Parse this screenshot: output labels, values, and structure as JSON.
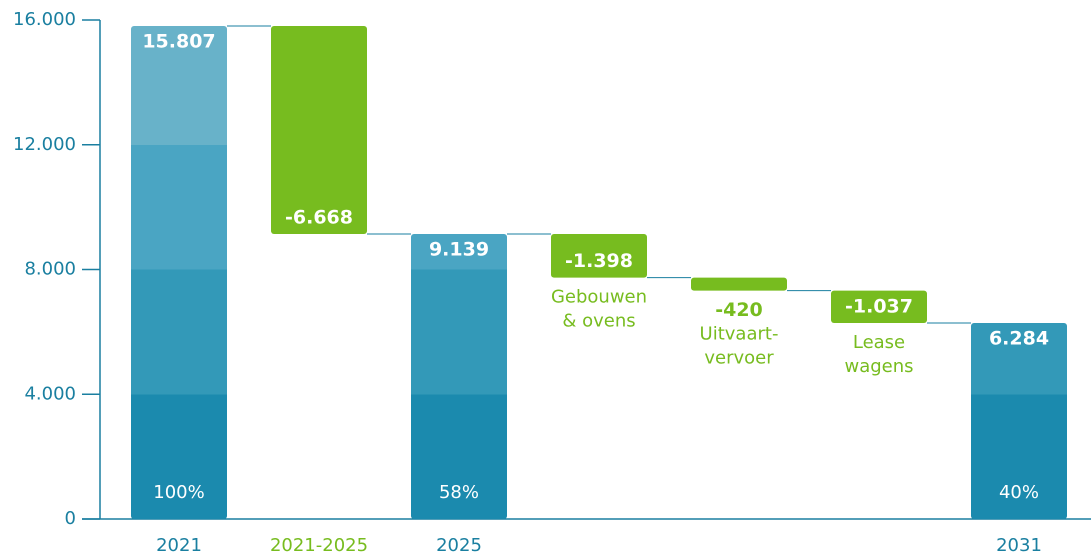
{
  "chart_data": {
    "type": "waterfall",
    "categories": [
      "2021",
      "2021-2025",
      "2025",
      null,
      null,
      null,
      "2031"
    ],
    "kinds": [
      "total",
      "delta",
      "total",
      "delta",
      "delta",
      "delta",
      "total"
    ],
    "values": [
      15807,
      -6668,
      9139,
      -1398,
      -420,
      -1037,
      6284
    ],
    "value_labels": [
      "15.807",
      "-6.668",
      "9.139",
      "-1.398",
      "-420",
      "-1.037",
      "6.284"
    ],
    "share_labels": [
      "100%",
      null,
      "58%",
      null,
      null,
      null,
      "40%"
    ],
    "descriptions": [
      null,
      null,
      null,
      [
        "Gebouwen",
        "& ovens"
      ],
      [
        "Uitvaart-",
        "vervoer"
      ],
      [
        "Lease",
        "wagens"
      ],
      null
    ],
    "total_band_colors": [
      "#1b8aae",
      "#3399b8",
      "#4aa5c3",
      "#68b2c9"
    ],
    "delta_color": "#77bc1f",
    "axis_color": "#1a7fa0",
    "ylim": [
      0,
      16000
    ],
    "yticks": [
      0,
      {
        "value": 4000,
        "label": "4.000"
      },
      {
        "value": 8000,
        "label": "8.000"
      },
      {
        "value": 12000,
        "label": "12.000"
      },
      {
        "value": 16000,
        "label": "16.000"
      }
    ]
  }
}
